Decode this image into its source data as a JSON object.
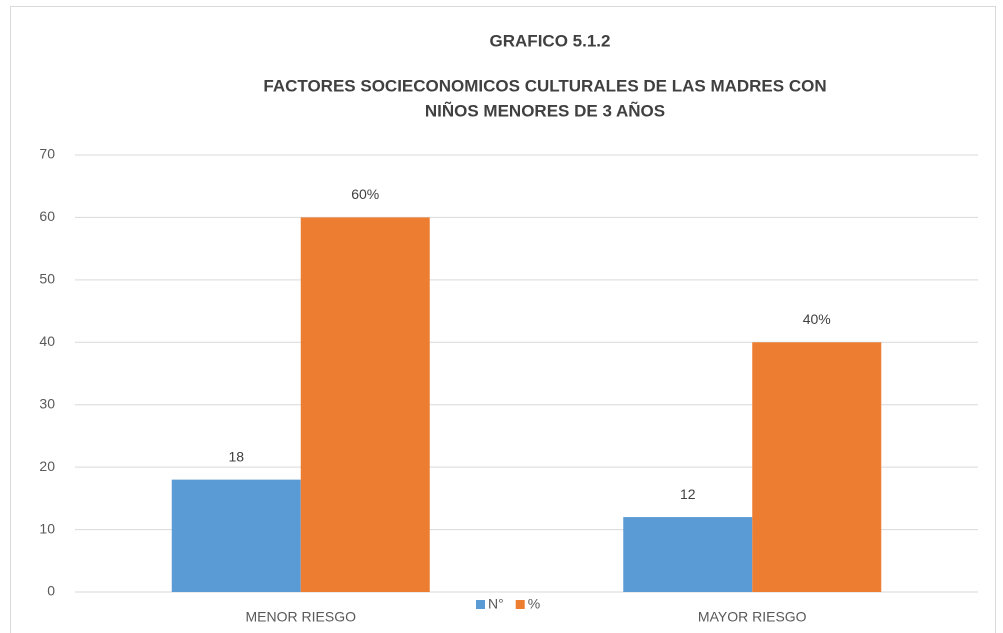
{
  "chart_data": {
    "type": "bar",
    "title": "GRAFICO 5.1.2",
    "subtitle": [
      "FACTORES SOCIECONOMICOS  CULTURALES DE LAS MADRES CON",
      "NIÑOS MENORES DE 3 AÑOS"
    ],
    "categories": [
      "MENOR RIESGO",
      "MAYOR RIESGO"
    ],
    "series": [
      {
        "name": "N°",
        "color": "#5b9bd5",
        "values": [
          18,
          12
        ]
      },
      {
        "name": "%",
        "color": "#ed7d31",
        "values": [
          60,
          40
        ],
        "value_labels": [
          "60%",
          "40%"
        ]
      }
    ],
    "ylim": [
      0,
      70
    ],
    "yticks": [
      0,
      10,
      20,
      30,
      40,
      50,
      60,
      70
    ],
    "grid": true,
    "legend": "bottom"
  }
}
